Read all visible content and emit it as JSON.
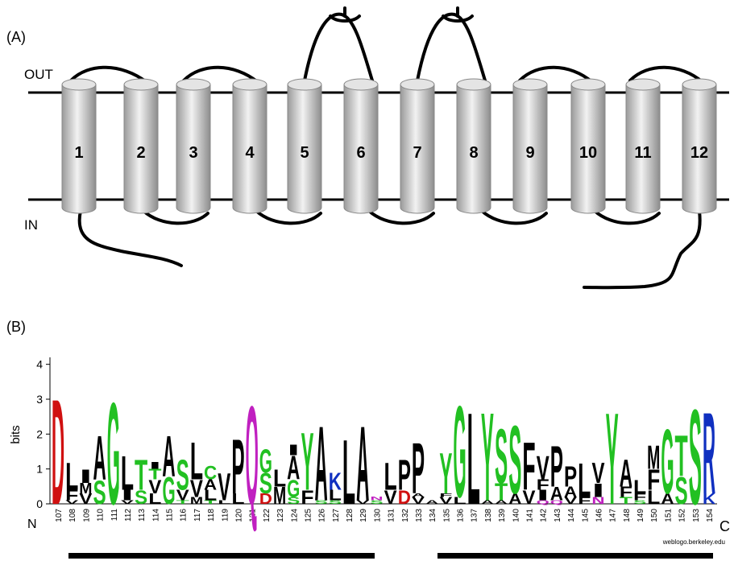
{
  "panel_a": {
    "label": "(A)",
    "out_label": "OUT",
    "in_label": "IN",
    "helices": [
      "1",
      "2",
      "3",
      "4",
      "5",
      "6",
      "7",
      "8",
      "9",
      "10",
      "11",
      "12"
    ]
  },
  "panel_b": {
    "label": "(B)",
    "y_label": "bits",
    "n_label": "N",
    "c_label": "C",
    "credit": "weblogo.berkeley.edu",
    "ylim": [
      0,
      4.2
    ],
    "yticks": [
      0,
      1,
      2,
      3,
      4
    ],
    "colors": {
      "D": "#d01010",
      "E": "#d01010",
      "K": "#1030c0",
      "R": "#1030c0",
      "H": "#1030c0",
      "G": "#22c022",
      "S": "#22c022",
      "T": "#22c022",
      "Y": "#22c022",
      "C": "#22c022",
      "Q": "#c020c0",
      "N": "#c020c0",
      "A": "#000000",
      "L": "#000000",
      "V": "#000000",
      "I": "#000000",
      "M": "#000000",
      "F": "#000000",
      "P": "#000000",
      "W": "#000000"
    },
    "positions": [
      {
        "label": "107",
        "letters": [
          {
            "letter": "D",
            "bits": 3.1
          }
        ]
      },
      {
        "label": "108",
        "letters": [
          {
            "letter": "V",
            "bits": 0.1
          },
          {
            "letter": "F",
            "bits": 0.3
          },
          {
            "letter": "L",
            "bits": 0.8
          }
        ]
      },
      {
        "label": "109",
        "letters": [
          {
            "letter": "V",
            "bits": 0.3
          },
          {
            "letter": "M",
            "bits": 0.3
          },
          {
            "letter": "I",
            "bits": 0.4
          }
        ]
      },
      {
        "label": "110",
        "letters": [
          {
            "letter": "S",
            "bits": 0.7
          },
          {
            "letter": "A",
            "bits": 1.3
          }
        ]
      },
      {
        "label": "111",
        "letters": [
          {
            "letter": "G",
            "bits": 3.0
          }
        ]
      },
      {
        "label": "112",
        "letters": [
          {
            "letter": "V",
            "bits": 0.1
          },
          {
            "letter": "I",
            "bits": 0.3
          },
          {
            "letter": "L",
            "bits": 1.0
          }
        ]
      },
      {
        "label": "113",
        "letters": [
          {
            "letter": "S",
            "bits": 0.4
          },
          {
            "letter": "T",
            "bits": 0.9
          }
        ]
      },
      {
        "label": "114",
        "letters": [
          {
            "letter": "L",
            "bits": 0.3
          },
          {
            "letter": "V",
            "bits": 0.4
          },
          {
            "letter": "T",
            "bits": 0.3
          },
          {
            "letter": "I",
            "bits": 0.2
          }
        ]
      },
      {
        "label": "115",
        "letters": [
          {
            "letter": "G",
            "bits": 0.8
          },
          {
            "letter": "A",
            "bits": 1.2
          }
        ]
      },
      {
        "label": "116",
        "letters": [
          {
            "letter": "T",
            "bits": 0.1
          },
          {
            "letter": "V",
            "bits": 0.3
          },
          {
            "letter": "S",
            "bits": 0.9
          }
        ]
      },
      {
        "label": "117",
        "letters": [
          {
            "letter": "M",
            "bits": 0.2
          },
          {
            "letter": "V",
            "bits": 0.5
          },
          {
            "letter": "L",
            "bits": 1.1
          }
        ]
      },
      {
        "label": "118",
        "letters": [
          {
            "letter": "T",
            "bits": 0.1
          },
          {
            "letter": "L",
            "bits": 0.3
          },
          {
            "letter": "A",
            "bits": 0.3
          },
          {
            "letter": "C",
            "bits": 0.4
          }
        ]
      },
      {
        "label": "119",
        "letters": [
          {
            "letter": "L",
            "bits": 0.1
          },
          {
            "letter": "V",
            "bits": 0.8
          }
        ]
      },
      {
        "label": "120",
        "letters": [
          {
            "letter": "L",
            "bits": 0.3
          },
          {
            "letter": "P",
            "bits": 1.6
          }
        ]
      },
      {
        "label": "121",
        "letters": [
          {
            "letter": "Q",
            "bits": 2.9
          }
        ]
      },
      {
        "label": "122",
        "letters": [
          {
            "letter": "D",
            "bits": 0.3
          },
          {
            "letter": "S",
            "bits": 0.6
          },
          {
            "letter": "G",
            "bits": 0.7
          }
        ]
      },
      {
        "label": "123",
        "letters": [
          {
            "letter": "M",
            "bits": 0.5
          },
          {
            "letter": "L",
            "bits": 0.5
          }
        ]
      },
      {
        "label": "124",
        "letters": [
          {
            "letter": "S",
            "bits": 0.2
          },
          {
            "letter": "G",
            "bits": 0.5
          },
          {
            "letter": "A",
            "bits": 0.7
          },
          {
            "letter": "I",
            "bits": 0.3
          }
        ]
      },
      {
        "label": "125",
        "letters": [
          {
            "letter": "F",
            "bits": 0.4
          },
          {
            "letter": "Y",
            "bits": 1.7
          }
        ]
      },
      {
        "label": "126",
        "letters": [
          {
            "letter": "S",
            "bits": 0.1
          },
          {
            "letter": "A",
            "bits": 2.2
          }
        ]
      },
      {
        "label": "127",
        "letters": [
          {
            "letter": "S",
            "bits": 0.1
          },
          {
            "letter": "L",
            "bits": 0.3
          },
          {
            "letter": "K",
            "bits": 0.5
          }
        ]
      },
      {
        "label": "128",
        "letters": [
          {
            "letter": "L",
            "bits": 1.9
          }
        ]
      },
      {
        "label": "129",
        "letters": [
          {
            "letter": "V",
            "bits": 0.1
          },
          {
            "letter": "A",
            "bits": 2.2
          }
        ]
      },
      {
        "label": "130",
        "letters": [
          {
            "letter": "S",
            "bits": 0.1
          },
          {
            "letter": "N",
            "bits": 0.1
          }
        ]
      },
      {
        "label": "131",
        "letters": [
          {
            "letter": "V",
            "bits": 0.4
          },
          {
            "letter": "L",
            "bits": 0.8
          }
        ]
      },
      {
        "label": "132",
        "letters": [
          {
            "letter": "D",
            "bits": 0.4
          },
          {
            "letter": "P",
            "bits": 0.9
          }
        ]
      },
      {
        "label": "133",
        "letters": [
          {
            "letter": "V",
            "bits": 0.2
          },
          {
            "letter": "A",
            "bits": 0.1
          },
          {
            "letter": "P",
            "bits": 1.5
          }
        ]
      },
      {
        "label": "134",
        "letters": [
          {
            "letter": "A",
            "bits": 0.1
          }
        ]
      },
      {
        "label": "135",
        "letters": [
          {
            "letter": "V",
            "bits": 0.2
          },
          {
            "letter": "F",
            "bits": 0.1
          },
          {
            "letter": "Y",
            "bits": 1.2
          }
        ]
      },
      {
        "label": "136",
        "letters": [
          {
            "letter": "L",
            "bits": 0.2
          },
          {
            "letter": "G",
            "bits": 2.7
          }
        ]
      },
      {
        "label": "137",
        "letters": [
          {
            "letter": "L",
            "bits": 2.7
          }
        ]
      },
      {
        "label": "138",
        "letters": [
          {
            "letter": "A",
            "bits": 0.1
          },
          {
            "letter": "Y",
            "bits": 2.6
          }
        ]
      },
      {
        "label": "139",
        "letters": [
          {
            "letter": "A",
            "bits": 0.1
          },
          {
            "letter": "T",
            "bits": 0.5
          },
          {
            "letter": "S",
            "bits": 1.6
          }
        ]
      },
      {
        "label": "140",
        "letters": [
          {
            "letter": "A",
            "bits": 0.3
          },
          {
            "letter": "S",
            "bits": 2.0
          }
        ]
      },
      {
        "label": "141",
        "letters": [
          {
            "letter": "V",
            "bits": 0.4
          },
          {
            "letter": "F",
            "bits": 1.4
          }
        ]
      },
      {
        "label": "142",
        "letters": [
          {
            "letter": "Q",
            "bits": 0.1
          },
          {
            "letter": "I",
            "bits": 0.3
          },
          {
            "letter": "F",
            "bits": 0.3
          },
          {
            "letter": "V",
            "bits": 0.7
          }
        ]
      },
      {
        "label": "143",
        "letters": [
          {
            "letter": "Q",
            "bits": 0.1
          },
          {
            "letter": "A",
            "bits": 0.4
          },
          {
            "letter": "P",
            "bits": 1.2
          }
        ]
      },
      {
        "label": "144",
        "letters": [
          {
            "letter": "V",
            "bits": 0.2
          },
          {
            "letter": "A",
            "bits": 0.3
          },
          {
            "letter": "P",
            "bits": 0.6
          }
        ]
      },
      {
        "label": "145",
        "letters": [
          {
            "letter": "F",
            "bits": 0.2
          },
          {
            "letter": "L",
            "bits": 1.0
          }
        ]
      },
      {
        "label": "146",
        "letters": [
          {
            "letter": "N",
            "bits": 0.2
          },
          {
            "letter": "I",
            "bits": 0.4
          },
          {
            "letter": "V",
            "bits": 0.6
          }
        ]
      },
      {
        "label": "147",
        "letters": [
          {
            "letter": "Y",
            "bits": 2.7
          }
        ]
      },
      {
        "label": "148",
        "letters": [
          {
            "letter": "T",
            "bits": 0.2
          },
          {
            "letter": "F",
            "bits": 0.3
          },
          {
            "letter": "A",
            "bits": 0.8
          }
        ]
      },
      {
        "label": "149",
        "letters": [
          {
            "letter": "S",
            "bits": 0.1
          },
          {
            "letter": "F",
            "bits": 0.2
          },
          {
            "letter": "L",
            "bits": 0.4
          }
        ]
      },
      {
        "label": "150",
        "letters": [
          {
            "letter": "L",
            "bits": 0.4
          },
          {
            "letter": "F",
            "bits": 0.6
          },
          {
            "letter": "M",
            "bits": 0.7
          }
        ]
      },
      {
        "label": "151",
        "letters": [
          {
            "letter": "A",
            "bits": 0.3
          },
          {
            "letter": "G",
            "bits": 1.9
          }
        ]
      },
      {
        "label": "152",
        "letters": [
          {
            "letter": "S",
            "bits": 0.8
          },
          {
            "letter": "T",
            "bits": 1.2
          }
        ]
      },
      {
        "label": "153",
        "letters": [
          {
            "letter": "S",
            "bits": 2.8
          }
        ]
      },
      {
        "label": "154",
        "letters": [
          {
            "letter": "K",
            "bits": 0.3
          },
          {
            "letter": "R",
            "bits": 2.4
          }
        ]
      }
    ]
  }
}
